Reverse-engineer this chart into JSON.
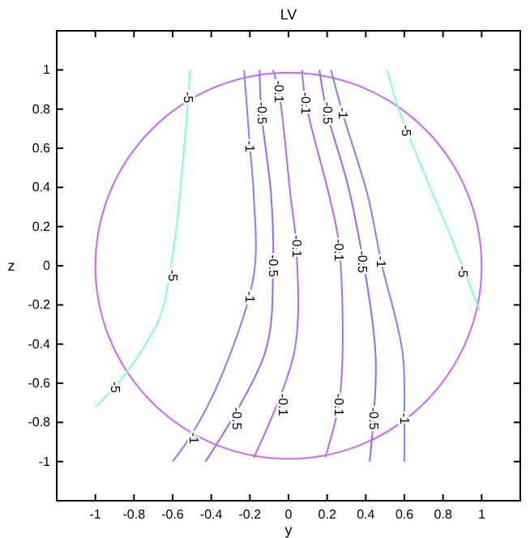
{
  "chart_data": {
    "type": "line",
    "title": "LV",
    "xlabel": "y",
    "ylabel": "z",
    "xlim": [
      -1.2,
      1.2
    ],
    "ylim": [
      -1.2,
      1.2
    ],
    "xticks": [
      -1,
      -0.8,
      -0.6,
      -0.4,
      -0.2,
      0,
      0.2,
      0.4,
      0.6,
      0.8,
      1
    ],
    "yticks": [
      -1,
      -0.8,
      -0.6,
      -0.4,
      -0.2,
      0,
      0.2,
      0.4,
      0.6,
      0.8,
      1
    ],
    "grid": false,
    "marker": "none",
    "line_style": "solid",
    "series": [
      {
        "color": "#7fffd4",
        "x": [
          -0.51,
          -0.52,
          -0.55,
          -0.58,
          -0.66,
          -0.74,
          -0.82,
          -0.9,
          -1.0
        ],
        "values": [
          1.0,
          0.84,
          0.5,
          0.2,
          -0.25,
          -0.4,
          -0.52,
          -0.62,
          -0.72
        ]
      },
      {
        "color": "#7fffd4",
        "x": [
          0.51,
          0.57,
          0.75,
          0.84,
          0.99
        ],
        "values": [
          1.0,
          0.8,
          0.36,
          0.15,
          -0.23
        ]
      },
      {
        "color": "#8080ff",
        "x": [
          -0.23,
          -0.2,
          -0.18,
          -0.18,
          -0.35,
          -0.5,
          -0.6
        ],
        "values": [
          1.0,
          0.61,
          0.36,
          -0.05,
          -0.57,
          -0.86,
          -1.0
        ]
      },
      {
        "color": "#9966ff",
        "x": [
          -0.15,
          -0.14,
          -0.09,
          -0.08,
          -0.12,
          -0.43
        ],
        "values": [
          1.0,
          0.78,
          0.36,
          0.0,
          -0.44,
          -1.0
        ]
      },
      {
        "color": "#b266ff",
        "x": [
          -0.08,
          -0.05,
          0.01,
          0.04,
          0.03,
          -0.18
        ],
        "values": [
          1.0,
          0.89,
          0.36,
          0.1,
          -0.44,
          -0.98
        ]
      },
      {
        "color": "#b266ff",
        "x": [
          0.07,
          0.09,
          0.21,
          0.26,
          0.28,
          0.26,
          0.19
        ],
        "values": [
          1.0,
          0.83,
          0.36,
          0.12,
          -0.44,
          -0.71,
          -0.98
        ]
      },
      {
        "color": "#9966ff",
        "x": [
          0.16,
          0.2,
          0.32,
          0.45,
          0.44,
          0.42
        ],
        "values": [
          1.0,
          0.78,
          0.36,
          -0.44,
          -0.78,
          -1.0
        ]
      },
      {
        "color": "#8080ff",
        "x": [
          0.22,
          0.28,
          0.41,
          0.48,
          0.59,
          0.6,
          0.6
        ],
        "values": [
          1.0,
          0.78,
          0.36,
          0.02,
          -0.44,
          -0.78,
          -1.0
        ]
      }
    ],
    "annotations": [
      {
        "text": "-5",
        "x": -0.52,
        "y": 0.86
      },
      {
        "text": "-5",
        "x": -0.6,
        "y": -0.05
      },
      {
        "text": "-5",
        "x": -0.9,
        "y": -0.62
      },
      {
        "text": "-5",
        "x": 0.61,
        "y": 0.69
      },
      {
        "text": "-5",
        "x": 0.9,
        "y": -0.03
      },
      {
        "text": "-1",
        "x": -0.2,
        "y": 0.61
      },
      {
        "text": "-1",
        "x": -0.2,
        "y": -0.16
      },
      {
        "text": "-1",
        "x": -0.49,
        "y": -0.88
      },
      {
        "text": "-0.5",
        "x": -0.14,
        "y": 0.78
      },
      {
        "text": "-0.5",
        "x": -0.08,
        "y": 0.0
      },
      {
        "text": "-0.5",
        "x": -0.27,
        "y": -0.78
      },
      {
        "text": "-0.1",
        "x": -0.05,
        "y": 0.89
      },
      {
        "text": "-0.1",
        "x": 0.04,
        "y": 0.1
      },
      {
        "text": "-0.1",
        "x": -0.03,
        "y": -0.71
      },
      {
        "text": "-0.1",
        "x": 0.09,
        "y": 0.83
      },
      {
        "text": "-0.1",
        "x": 0.26,
        "y": 0.08
      },
      {
        "text": "-0.1",
        "x": 0.26,
        "y": -0.71
      },
      {
        "text": "-0.5",
        "x": 0.2,
        "y": 0.78
      },
      {
        "text": "-0.5",
        "x": 0.38,
        "y": 0.02
      },
      {
        "text": "-0.5",
        "x": 0.44,
        "y": -0.78
      },
      {
        "text": "-1",
        "x": 0.28,
        "y": 0.78
      },
      {
        "text": "-1",
        "x": 0.48,
        "y": 0.02
      },
      {
        "text": "-1",
        "x": 0.6,
        "y": -0.78
      }
    ]
  }
}
